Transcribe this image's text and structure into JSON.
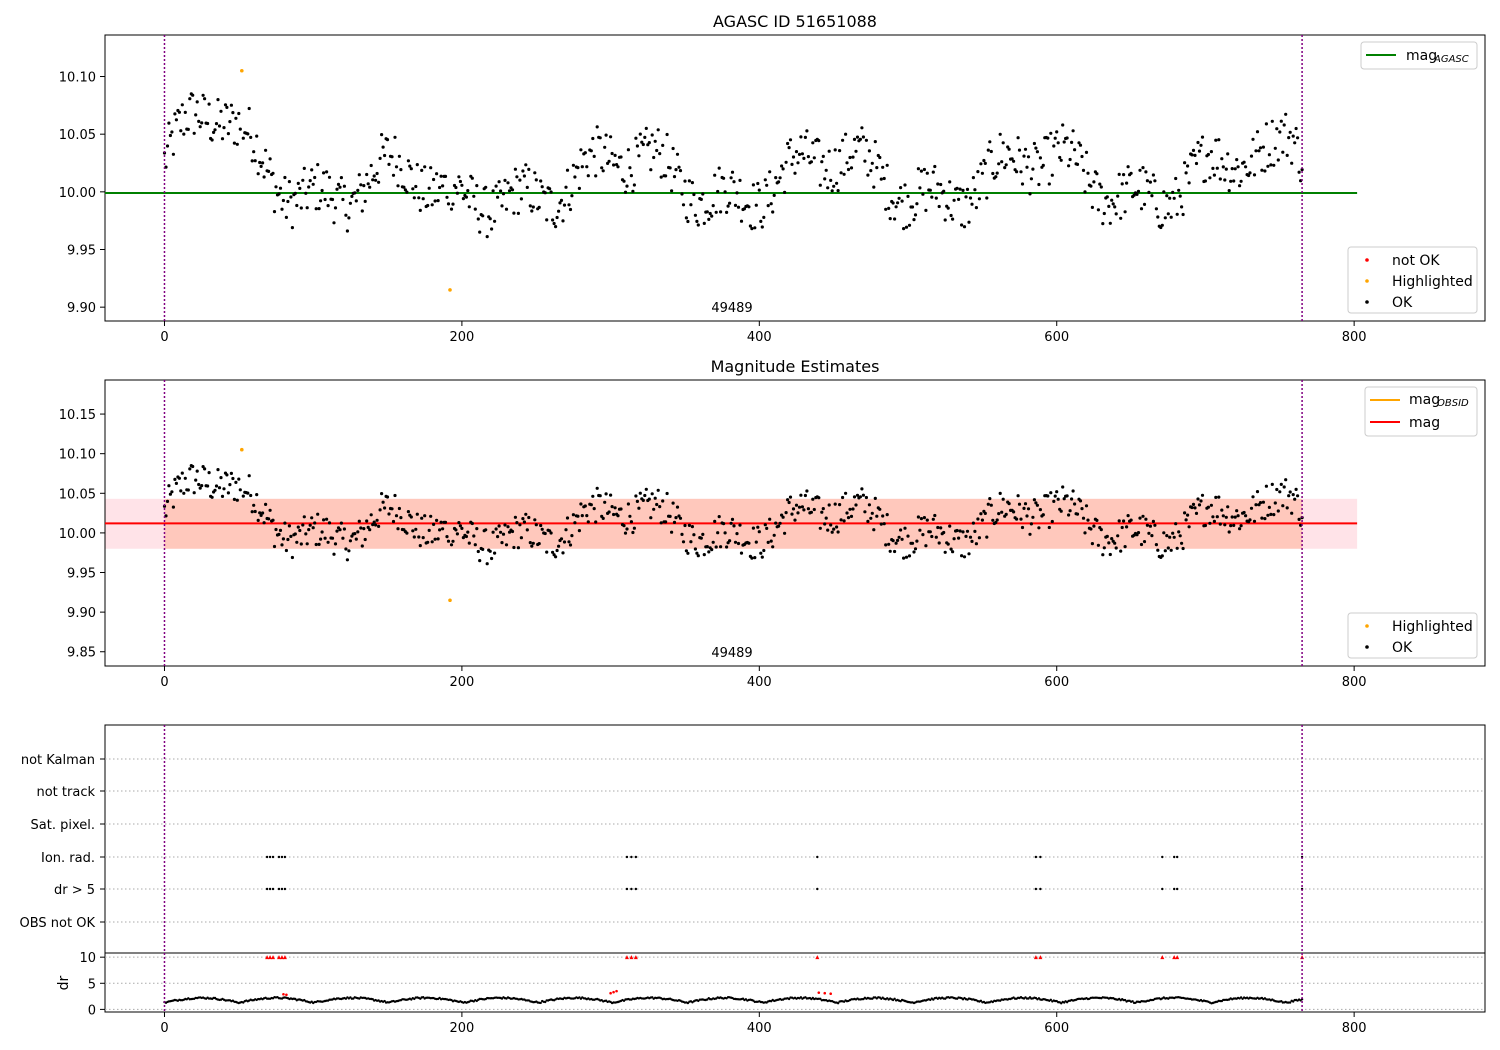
{
  "colors": {
    "ok": "#000000",
    "highlighted": "#ffa500",
    "not_ok": "#ff0000",
    "agasc_line": "#008000",
    "mag_line": "#ff0000",
    "mag_obsid_line": "#ffa500",
    "band_outer": "#ffc0cb",
    "band_inner": "#ffa07a",
    "obs_boundary": "#800080"
  },
  "chart_data": [
    {
      "id": "agasc",
      "type": "scatter",
      "title": "AGASC ID 51651088",
      "xlim": [
        -40,
        888
      ],
      "ylim": [
        9.888,
        10.136
      ],
      "xticks": [
        0,
        200,
        400,
        600,
        800
      ],
      "xtick_labels": [
        "0",
        "200",
        "400",
        "600",
        "800"
      ],
      "yticks": [
        9.9,
        9.95,
        10.0,
        10.05,
        10.1
      ],
      "ytick_labels": [
        "9.90",
        "9.95",
        "10.00",
        "10.05",
        "10.10"
      ],
      "hline": {
        "name": "mag",
        "subscript": "AGASC",
        "y": 9.999,
        "x": [
          -40,
          802
        ]
      },
      "obs_lines": [
        0,
        765
      ],
      "obs_label": {
        "text": "49489",
        "x": 382,
        "y": 9.895
      },
      "highlighted": [
        [
          52,
          10.105
        ],
        [
          192,
          9.915
        ]
      ],
      "legends": [
        {
          "position": "top-right",
          "entries": [
            {
              "kind": "line",
              "label": "mag",
              "subscript": "AGASC",
              "color": "#008000"
            }
          ]
        },
        {
          "position": "bottom-right",
          "entries": [
            {
              "kind": "dot",
              "label": "not OK",
              "color": "#ff0000"
            },
            {
              "kind": "dot",
              "label": "Highlighted",
              "color": "#ffa500"
            },
            {
              "kind": "dot",
              "label": "OK",
              "color": "#000000"
            }
          ]
        }
      ]
    },
    {
      "id": "estimates",
      "type": "scatter",
      "title": "Magnitude Estimates",
      "xlim": [
        -40,
        888
      ],
      "ylim": [
        9.832,
        10.193
      ],
      "xticks": [
        0,
        200,
        400,
        600,
        800
      ],
      "xtick_labels": [
        "0",
        "200",
        "400",
        "600",
        "800"
      ],
      "yticks": [
        9.85,
        9.9,
        9.95,
        10.0,
        10.05,
        10.1,
        10.15
      ],
      "ytick_labels": [
        "9.85",
        "9.90",
        "9.95",
        "10.00",
        "10.05",
        "10.10",
        "10.15"
      ],
      "hline": {
        "name": "mag",
        "y": 10.012,
        "x": [
          -40,
          802
        ]
      },
      "band_outer": {
        "y0": 9.98,
        "y1": 10.043,
        "x": [
          -40,
          802
        ]
      },
      "band_inner": {
        "y0": 9.98,
        "y1": 10.043,
        "x": [
          0,
          765
        ]
      },
      "obs_lines": [
        0,
        765
      ],
      "obs_label": {
        "text": "49489",
        "x": 382,
        "y": 9.845
      },
      "highlighted": [
        [
          52,
          10.105
        ],
        [
          192,
          9.915
        ]
      ],
      "legends": [
        {
          "position": "top-right",
          "entries": [
            {
              "kind": "line",
              "label": "mag",
              "subscript": "OBSID",
              "color": "#ffa500"
            },
            {
              "kind": "line",
              "label": "mag",
              "subscript": "",
              "color": "#ff0000"
            }
          ]
        },
        {
          "position": "bottom-right",
          "entries": [
            {
              "kind": "dot",
              "label": "Highlighted",
              "color": "#ffa500"
            },
            {
              "kind": "dot",
              "label": "OK",
              "color": "#000000"
            }
          ]
        }
      ]
    },
    {
      "id": "flags",
      "type": "scatter",
      "title": "",
      "xlim": [
        -40,
        888
      ],
      "categories": [
        "not Kalman",
        "not track",
        "Sat. pixel.",
        "Ion. rad.",
        "dr > 5",
        "OBS not OK"
      ],
      "obs_lines": [
        0,
        765
      ],
      "flagged_indices": [
        69,
        71,
        73,
        77,
        79,
        81,
        311,
        314,
        317,
        439,
        586,
        589,
        671,
        679,
        681,
        765
      ],
      "flag_rows": [
        "Ion. rad.",
        "dr > 5"
      ]
    },
    {
      "id": "dr",
      "type": "scatter",
      "title": "",
      "ylabel": "dr",
      "xlim": [
        -40,
        888
      ],
      "ylim": [
        -0.5,
        10.8
      ],
      "xticks": [
        0,
        200,
        400,
        600,
        800
      ],
      "xtick_labels": [
        "0",
        "200",
        "400",
        "600",
        "800"
      ],
      "yticks": [
        0,
        5,
        10
      ],
      "ytick_labels": [
        "0",
        "5",
        "10"
      ],
      "obs_lines": [
        0,
        765
      ],
      "clipped_value": 10,
      "red_points": [
        [
          80,
          2.9
        ],
        [
          82,
          2.8
        ],
        [
          300,
          3.1
        ],
        [
          302,
          3.3
        ],
        [
          304,
          3.5
        ],
        [
          440,
          3.2
        ],
        [
          444,
          3.1
        ],
        [
          448,
          3.0
        ]
      ]
    }
  ]
}
